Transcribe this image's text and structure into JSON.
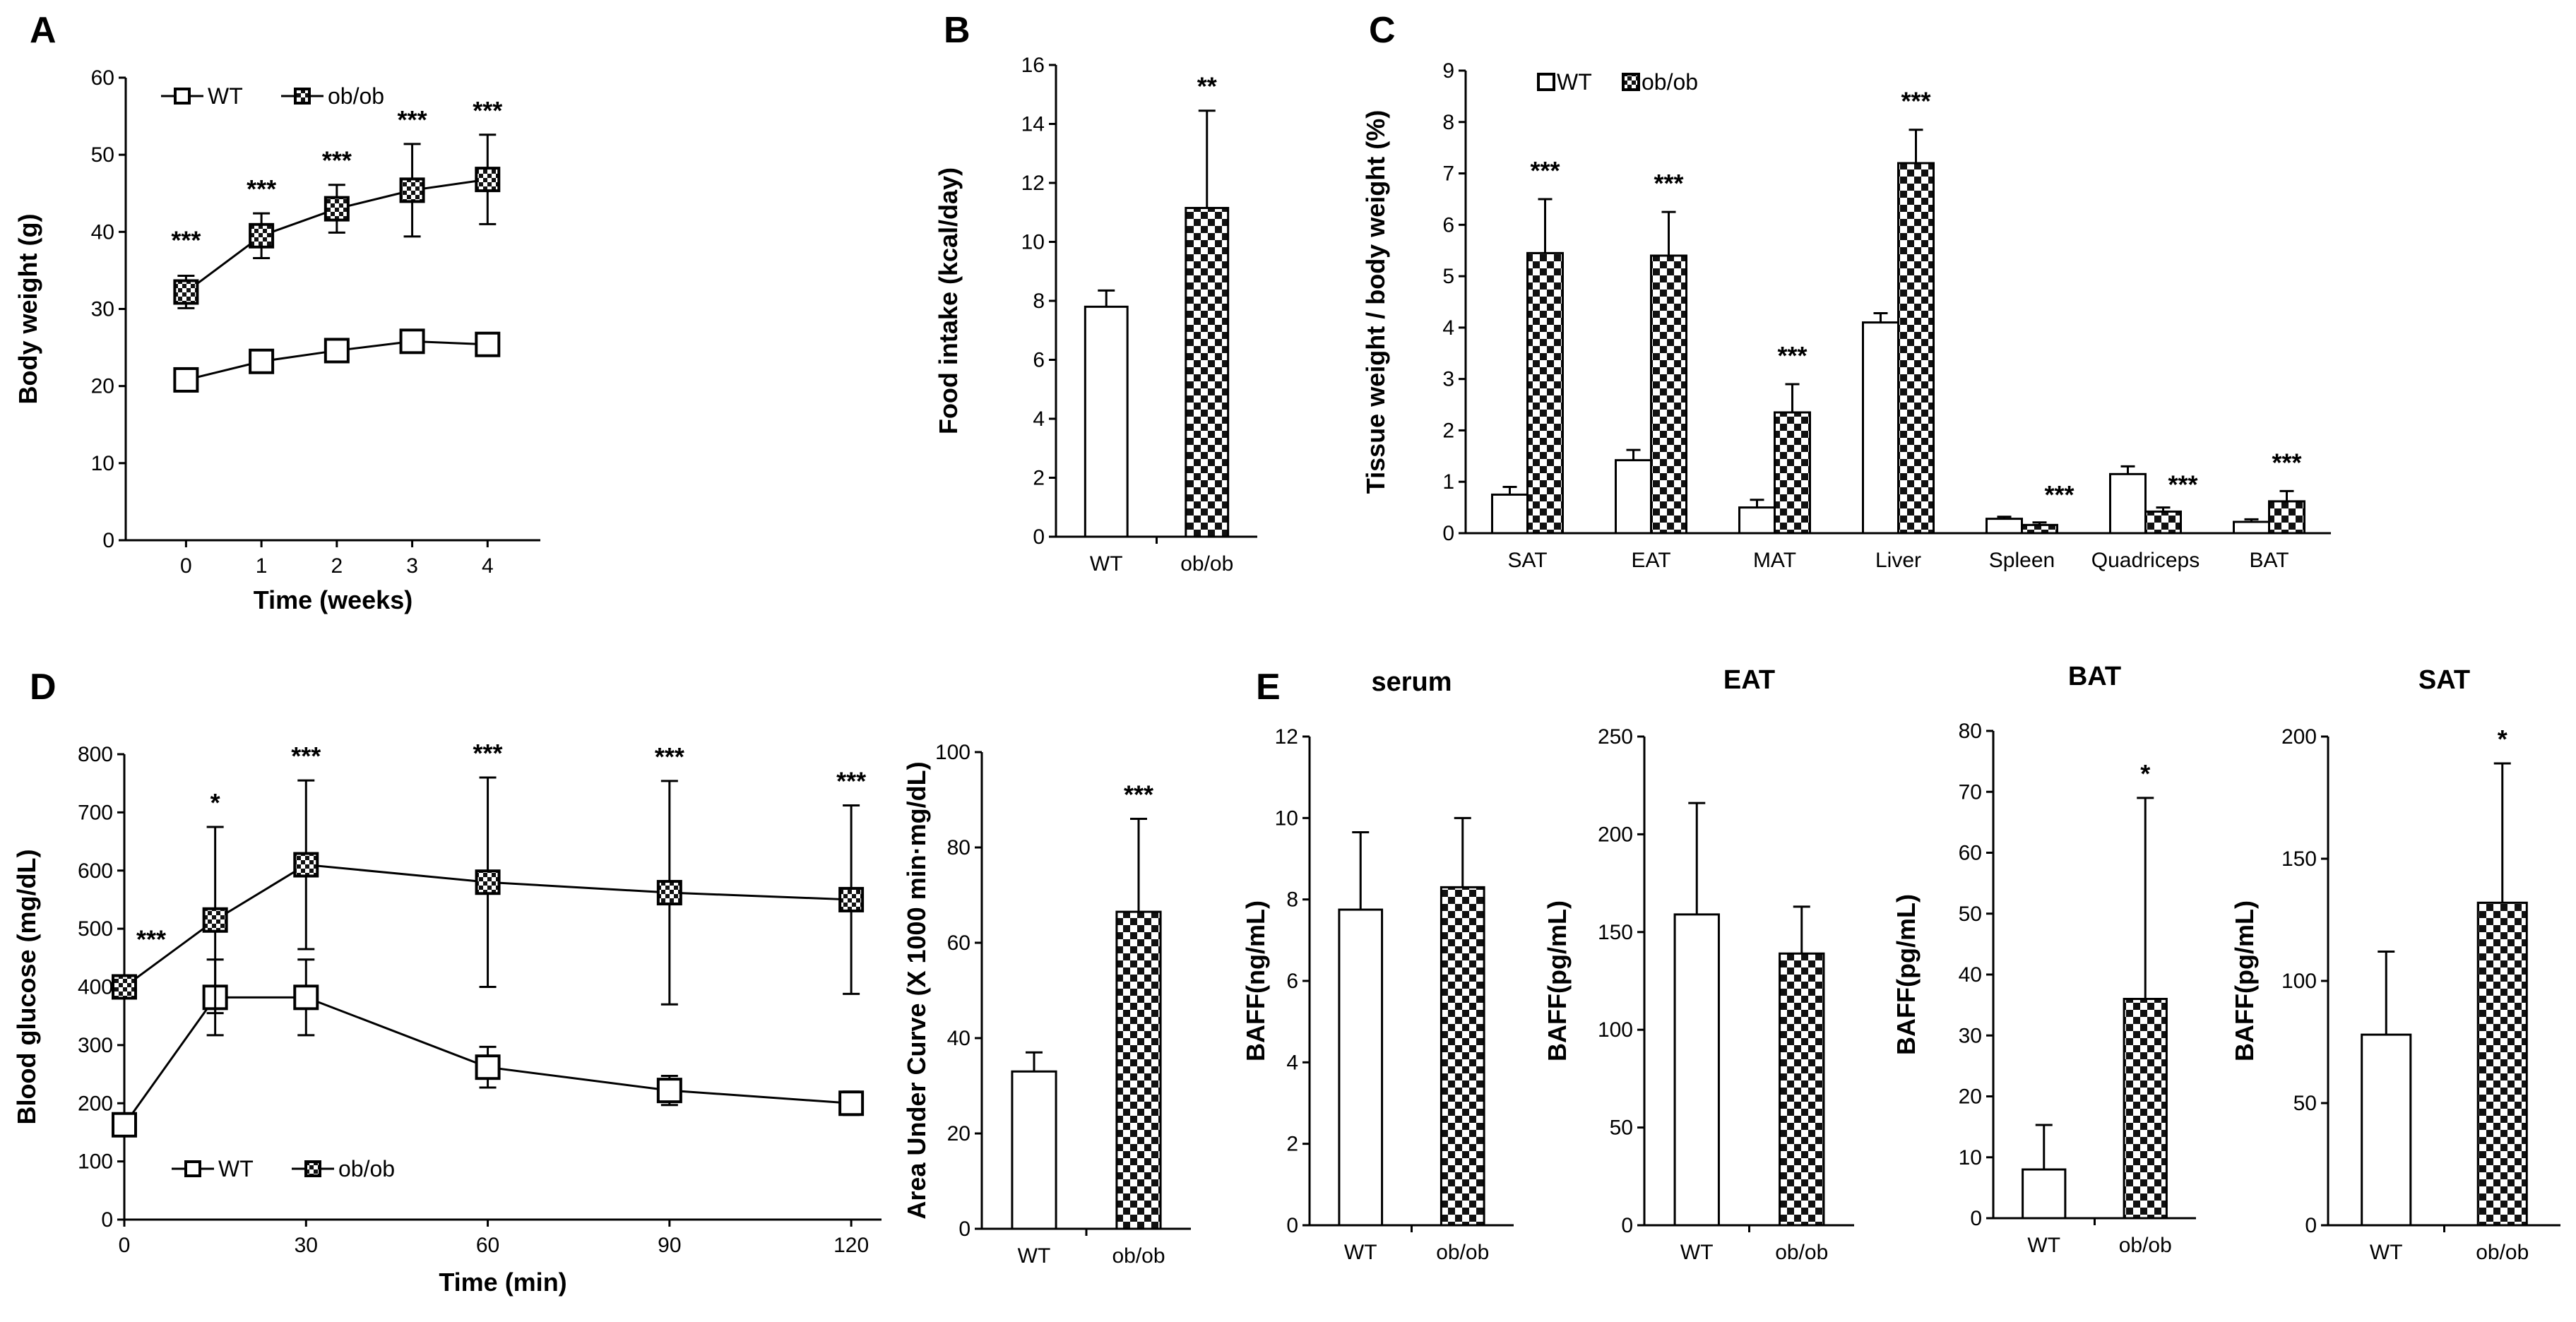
{
  "chart_data": [
    {
      "id": "A",
      "panel_label": "A",
      "type": "line",
      "xlabel": "Time (weeks)",
      "ylabel": "Body weight (g)",
      "x": [
        0,
        1,
        2,
        3,
        4
      ],
      "x_ticks": [
        "0",
        "1",
        "2",
        "3",
        "4"
      ],
      "ylim": [
        0,
        60
      ],
      "y_ticks": [
        0,
        10,
        20,
        30,
        40,
        50,
        60
      ],
      "legend": [
        "WT",
        "ob/ob"
      ],
      "legend_position": "top-left",
      "series": [
        {
          "name": "WT",
          "values": [
            20.8,
            23.2,
            24.6,
            25.8,
            25.4
          ],
          "errors": [
            0.4,
            0.5,
            0.5,
            0.5,
            0.5
          ],
          "style": "open"
        },
        {
          "name": "ob/ob",
          "values": [
            32.2,
            39.5,
            43.0,
            45.4,
            46.8
          ],
          "errors": [
            2.1,
            2.9,
            3.1,
            6.0,
            5.8
          ],
          "style": "checker"
        }
      ],
      "annotations": [
        "***",
        "***",
        "***",
        "***",
        "***"
      ]
    },
    {
      "id": "B",
      "panel_label": "B",
      "type": "bar",
      "ylabel": "Food intake (kcal/day)",
      "ylim": [
        0,
        16
      ],
      "y_ticks": [
        0,
        2,
        4,
        6,
        8,
        10,
        12,
        14,
        16
      ],
      "categories": [
        "WT",
        "ob/ob"
      ],
      "values": [
        7.8,
        11.15
      ],
      "errors": [
        0.55,
        3.3
      ],
      "styles": [
        "open",
        "checker"
      ],
      "annotations": [
        "",
        "**"
      ]
    },
    {
      "id": "C",
      "panel_label": "C",
      "type": "bar",
      "ylabel": "Tissue weight / body weight (%)",
      "ylim": [
        0,
        9
      ],
      "y_ticks": [
        0,
        1,
        2,
        3,
        4,
        5,
        6,
        7,
        8,
        9
      ],
      "legend": [
        "WT",
        "ob/ob"
      ],
      "legend_position": "top-left",
      "categories": [
        "SAT",
        "EAT",
        "MAT",
        "Liver",
        "Spleen",
        "Quadriceps",
        "BAT"
      ],
      "series": [
        {
          "name": "WT",
          "values": [
            0.75,
            1.42,
            0.5,
            4.1,
            0.28,
            1.15,
            0.22
          ],
          "errors": [
            0.15,
            0.2,
            0.15,
            0.18,
            0.04,
            0.15,
            0.05
          ],
          "style": "open"
        },
        {
          "name": "ob/ob",
          "values": [
            5.45,
            5.4,
            2.35,
            7.2,
            0.16,
            0.42,
            0.62
          ],
          "errors": [
            1.05,
            0.85,
            0.55,
            0.65,
            0.05,
            0.08,
            0.2
          ],
          "style": "checker"
        }
      ],
      "annotations": [
        "***",
        "***",
        "***",
        "***",
        "***",
        "***",
        "***"
      ]
    },
    {
      "id": "D1",
      "panel_label": "D",
      "type": "line",
      "xlabel": "Time (min)",
      "ylabel": "Blood glucose (mg/dL)",
      "x": [
        0,
        15,
        30,
        60,
        90,
        120
      ],
      "x_ticks": [
        "0",
        "30",
        "60",
        "90",
        "120"
      ],
      "ylim": [
        0,
        800
      ],
      "y_ticks": [
        0,
        100,
        200,
        300,
        400,
        500,
        600,
        700,
        800
      ],
      "legend": [
        "WT",
        "ob/ob"
      ],
      "legend_position": "bottom-left",
      "series": [
        {
          "name": "WT",
          "values": [
            163,
            382,
            382,
            262,
            222,
            200
          ],
          "errors": [
            0,
            65,
            65,
            35,
            25,
            20
          ],
          "style": "open"
        },
        {
          "name": "ob/ob",
          "values": [
            400,
            515,
            610,
            580,
            562,
            550
          ],
          "errors": [
            0,
            160,
            145,
            180,
            192,
            162
          ],
          "style": "checker"
        }
      ],
      "annotations": [
        "***",
        "*",
        "***",
        "***",
        "***",
        "***"
      ]
    },
    {
      "id": "D2",
      "panel_label": "",
      "type": "bar",
      "ylabel": "Area Under Curve (X 1000 min·mg/dL)",
      "ylim": [
        0,
        100
      ],
      "y_ticks": [
        0,
        20,
        40,
        60,
        80,
        100
      ],
      "categories": [
        "WT",
        "ob/ob"
      ],
      "values": [
        33,
        66.5
      ],
      "errors": [
        4,
        19.5
      ],
      "styles": [
        "open",
        "checker"
      ],
      "annotations": [
        "",
        "***"
      ]
    },
    {
      "id": "E1",
      "panel_label": "E",
      "type": "bar",
      "title": "serum",
      "ylabel": "BAFF(ng/mL)",
      "ylim": [
        0,
        12
      ],
      "y_ticks": [
        0,
        2,
        4,
        6,
        8,
        10,
        12
      ],
      "categories": [
        "WT",
        "ob/ob"
      ],
      "values": [
        7.75,
        8.3
      ],
      "errors": [
        1.9,
        1.7
      ],
      "styles": [
        "open",
        "checker"
      ],
      "annotations": [
        "",
        ""
      ]
    },
    {
      "id": "E2",
      "panel_label": "",
      "type": "bar",
      "title": "EAT",
      "ylabel": "BAFF(pg/mL)",
      "ylim": [
        0,
        250
      ],
      "y_ticks": [
        0,
        50,
        100,
        150,
        200,
        250
      ],
      "categories": [
        "WT",
        "ob/ob"
      ],
      "values": [
        159,
        139
      ],
      "errors": [
        57,
        24
      ],
      "styles": [
        "open",
        "checker"
      ],
      "annotations": [
        "",
        ""
      ]
    },
    {
      "id": "E3",
      "panel_label": "",
      "type": "bar",
      "title": "BAT",
      "ylabel": "BAFF(pg/mL)",
      "ylim": [
        0,
        80
      ],
      "y_ticks": [
        0,
        10,
        20,
        30,
        40,
        50,
        60,
        70,
        80
      ],
      "categories": [
        "WT",
        "ob/ob"
      ],
      "values": [
        8,
        36
      ],
      "errors": [
        7.3,
        33
      ],
      "styles": [
        "open",
        "checker"
      ],
      "annotations": [
        "",
        "*"
      ]
    },
    {
      "id": "E4",
      "panel_label": "",
      "type": "bar",
      "title": "SAT",
      "ylabel": "BAFF(pg/mL)",
      "ylim": [
        0,
        200
      ],
      "y_ticks": [
        0,
        50,
        100,
        150,
        200
      ],
      "categories": [
        "WT",
        "ob/ob"
      ],
      "values": [
        78,
        132
      ],
      "errors": [
        34,
        57
      ],
      "styles": [
        "open",
        "checker"
      ],
      "annotations": [
        "",
        "*"
      ]
    }
  ]
}
